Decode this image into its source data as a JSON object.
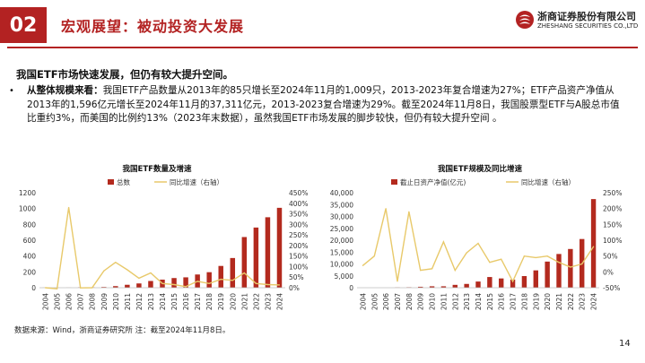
{
  "header": {
    "section_no": "02",
    "title": "宏观展望：被动投资大发展",
    "logo_cn": "浙商证券股份有限公司",
    "logo_en": "ZHESHANG SECURITIES CO.,LTD",
    "brand_color": "#b32222"
  },
  "subhead": "我国ETF市场快速发展，但仍有较大提升空间。",
  "bullet": {
    "lead": "从整体规模来看：",
    "text": "我国ETF产品数量从2013年的85只增长至2024年11月的1,009只，2013-2023年复合增速为27%；ETF产品资产净值从2013年的1,596亿元增长至2024年11月的37,311亿元，2013-2023复合增速为29%。截至2024年11月8日，我国股票型ETF与A股总市值比重约3%，而美国的比例约13%（2023年末数据），虽然我国ETF市场发展的脚步较快，但仍有较大提升空间 。"
  },
  "chart_data": [
    {
      "type": "bar",
      "title": "我国ETF数量及增速",
      "categories": [
        "2004",
        "2005",
        "2006",
        "2007",
        "2008",
        "2009",
        "2010",
        "2011",
        "2012",
        "2013",
        "2014",
        "2015",
        "2016",
        "2017",
        "2018",
        "2019",
        "2020",
        "2021",
        "2022",
        "2023",
        "2024"
      ],
      "series": [
        {
          "name": "总数",
          "kind": "bar",
          "axis": "left",
          "color": "#b32a1e",
          "values": [
            1,
            1,
            1,
            5,
            5,
            9,
            20,
            37,
            54,
            85,
            102,
            122,
            131,
            167,
            196,
            275,
            375,
            640,
            760,
            890,
            1009
          ]
        },
        {
          "name": "同比增速（右轴）",
          "kind": "line",
          "axis": "right",
          "color": "#e8c96a",
          "values": [
            0,
            -5,
            380,
            -1,
            0,
            80,
            120,
            85,
            45,
            70,
            20,
            15,
            5,
            30,
            20,
            40,
            35,
            70,
            20,
            15,
            13
          ]
        }
      ],
      "ylim_left": [
        0,
        1200
      ],
      "yticks_left": [
        0,
        200,
        400,
        600,
        800,
        1000,
        1200
      ],
      "ylim_right": [
        0,
        450
      ],
      "yticks_right": [
        "0%",
        "50%",
        "100%",
        "150%",
        "200%",
        "250%",
        "300%",
        "350%",
        "400%",
        "450%"
      ],
      "legend_position": "top"
    },
    {
      "type": "bar",
      "title": "我国ETF规模及同比增速",
      "categories": [
        "2004",
        "2005",
        "2006",
        "2007",
        "2008",
        "2009",
        "2010",
        "2011",
        "2012",
        "2013",
        "2014",
        "2015",
        "2016",
        "2017",
        "2018",
        "2019",
        "2020",
        "2021",
        "2022",
        "2023",
        "2024"
      ],
      "series": [
        {
          "name": "截止日资产净值(亿元)",
          "kind": "bar",
          "axis": "left",
          "color": "#b32a1e",
          "values": [
            0,
            0,
            0,
            100,
            200,
            400,
            600,
            600,
            1200,
            1596,
            2600,
            4500,
            3900,
            3400,
            4900,
            7300,
            11000,
            14200,
            16300,
            20500,
            37311
          ]
        },
        {
          "name": "同比增速（右轴）",
          "kind": "line",
          "axis": "right",
          "color": "#e8c96a",
          "values": [
            20,
            50,
            200,
            -30,
            190,
            5,
            10,
            95,
            5,
            60,
            90,
            30,
            40,
            -30,
            50,
            45,
            50,
            30,
            15,
            25,
            80
          ]
        }
      ],
      "ylim_left": [
        0,
        40000
      ],
      "yticks_left": [
        "0",
        "5,000",
        "10,000",
        "15,000",
        "20,000",
        "25,000",
        "30,000",
        "35,000",
        "40,000"
      ],
      "ylim_right": [
        -50,
        250
      ],
      "yticks_right": [
        "-50%",
        "0%",
        "50%",
        "100%",
        "150%",
        "200%",
        "250%"
      ],
      "legend_position": "top"
    }
  ],
  "source": "数据来源：Wind，浙商证券研究所 注：截至2024年11月8日。",
  "page_number": "14"
}
